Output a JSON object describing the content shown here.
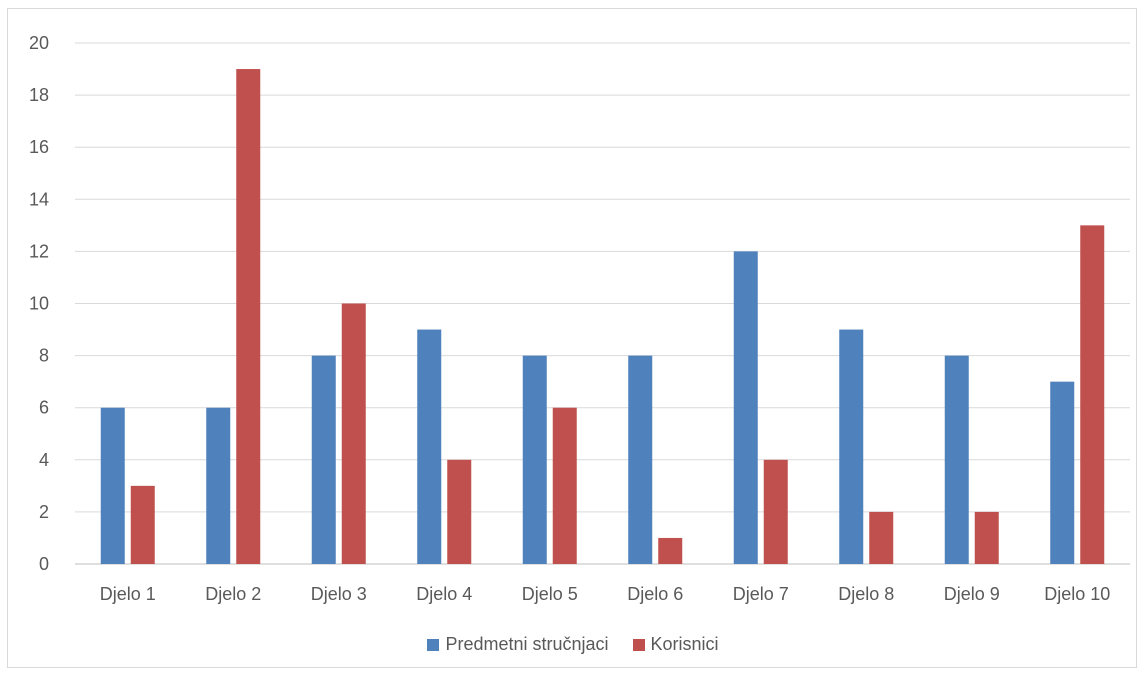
{
  "chart_data": {
    "type": "bar",
    "categories": [
      "Djelo 1",
      "Djelo 2",
      "Djelo 3",
      "Djelo 4",
      "Djelo 5",
      "Djelo 6",
      "Djelo 7",
      "Djelo 8",
      "Djelo 9",
      "Djelo 10"
    ],
    "series": [
      {
        "name": "Predmetni stručnjaci",
        "color": "#4F81BD",
        "values": [
          6,
          6,
          8,
          9,
          8,
          8,
          12,
          9,
          8,
          7
        ]
      },
      {
        "name": "Korisnici",
        "color": "#C0504D",
        "values": [
          3,
          19,
          10,
          4,
          6,
          1,
          4,
          2,
          2,
          13
        ]
      }
    ],
    "ylim": [
      0,
      20
    ],
    "yticks": [
      0,
      2,
      4,
      6,
      8,
      10,
      12,
      14,
      16,
      18,
      20
    ],
    "grid": true,
    "legend_position": "bottom"
  }
}
